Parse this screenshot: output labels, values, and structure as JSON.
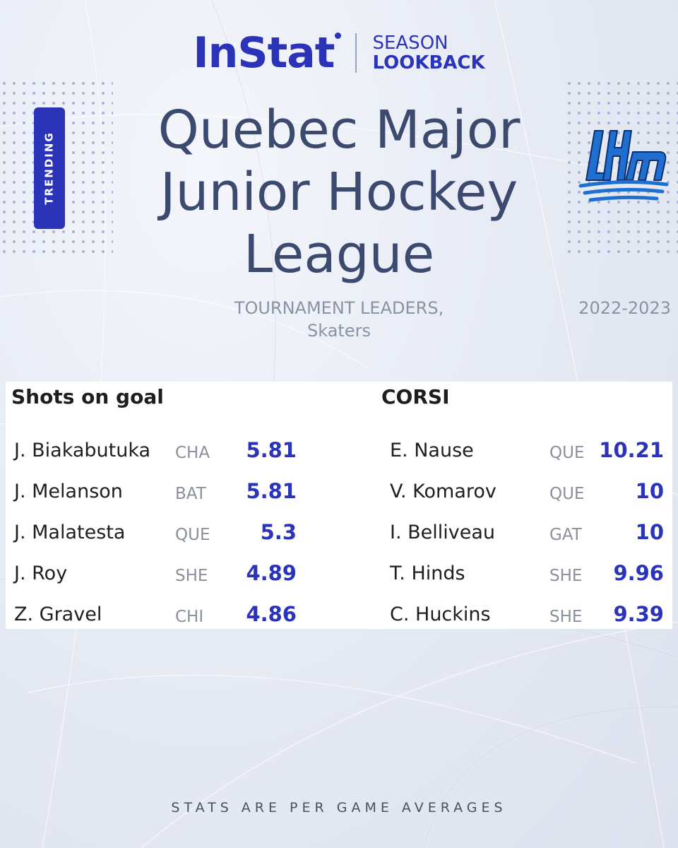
{
  "header": {
    "brand": "InStat",
    "season_line1": "SEASON",
    "season_line2": "LOOKBACK"
  },
  "badge": {
    "label": "TRENDING",
    "color": "#2b34b8"
  },
  "title": {
    "line1": "Quebec Major",
    "line2": "Junior Hockey",
    "line3": "League"
  },
  "subtitle": {
    "line1": "TOURNAMENT LEADERS,",
    "line2": "Skaters"
  },
  "season_year": "2022-2023",
  "logo": {
    "name": "lhjmq-logo",
    "text": "LHJMQ"
  },
  "shots_on_goal": {
    "title": "Shots on goal",
    "rows": [
      {
        "name": "J. Biakabutuka",
        "team": "CHA",
        "value": "5.81"
      },
      {
        "name": "J. Melanson",
        "team": "BAT",
        "value": "5.81"
      },
      {
        "name": "J. Malatesta",
        "team": "QUE",
        "value": "5.3"
      },
      {
        "name": "J. Roy",
        "team": "SHE",
        "value": "4.89"
      },
      {
        "name": "Z. Gravel",
        "team": "CHI",
        "value": "4.86"
      }
    ]
  },
  "corsi": {
    "title": "CORSI",
    "rows": [
      {
        "name": "E. Nause",
        "team": "QUE",
        "value": "10.21"
      },
      {
        "name": "V. Komarov",
        "team": "QUE",
        "value": "10"
      },
      {
        "name": "I. Belliveau",
        "team": "GAT",
        "value": "10"
      },
      {
        "name": "T. Hinds",
        "team": "SHE",
        "value": "9.96"
      },
      {
        "name": "C. Huckins",
        "team": "SHE",
        "value": "9.39"
      }
    ]
  },
  "footer": "STATS ARE PER GAME AVERAGES",
  "colors": {
    "accent": "#2b34b8",
    "title": "#3b4a6e",
    "muted": "#8a92a6"
  }
}
